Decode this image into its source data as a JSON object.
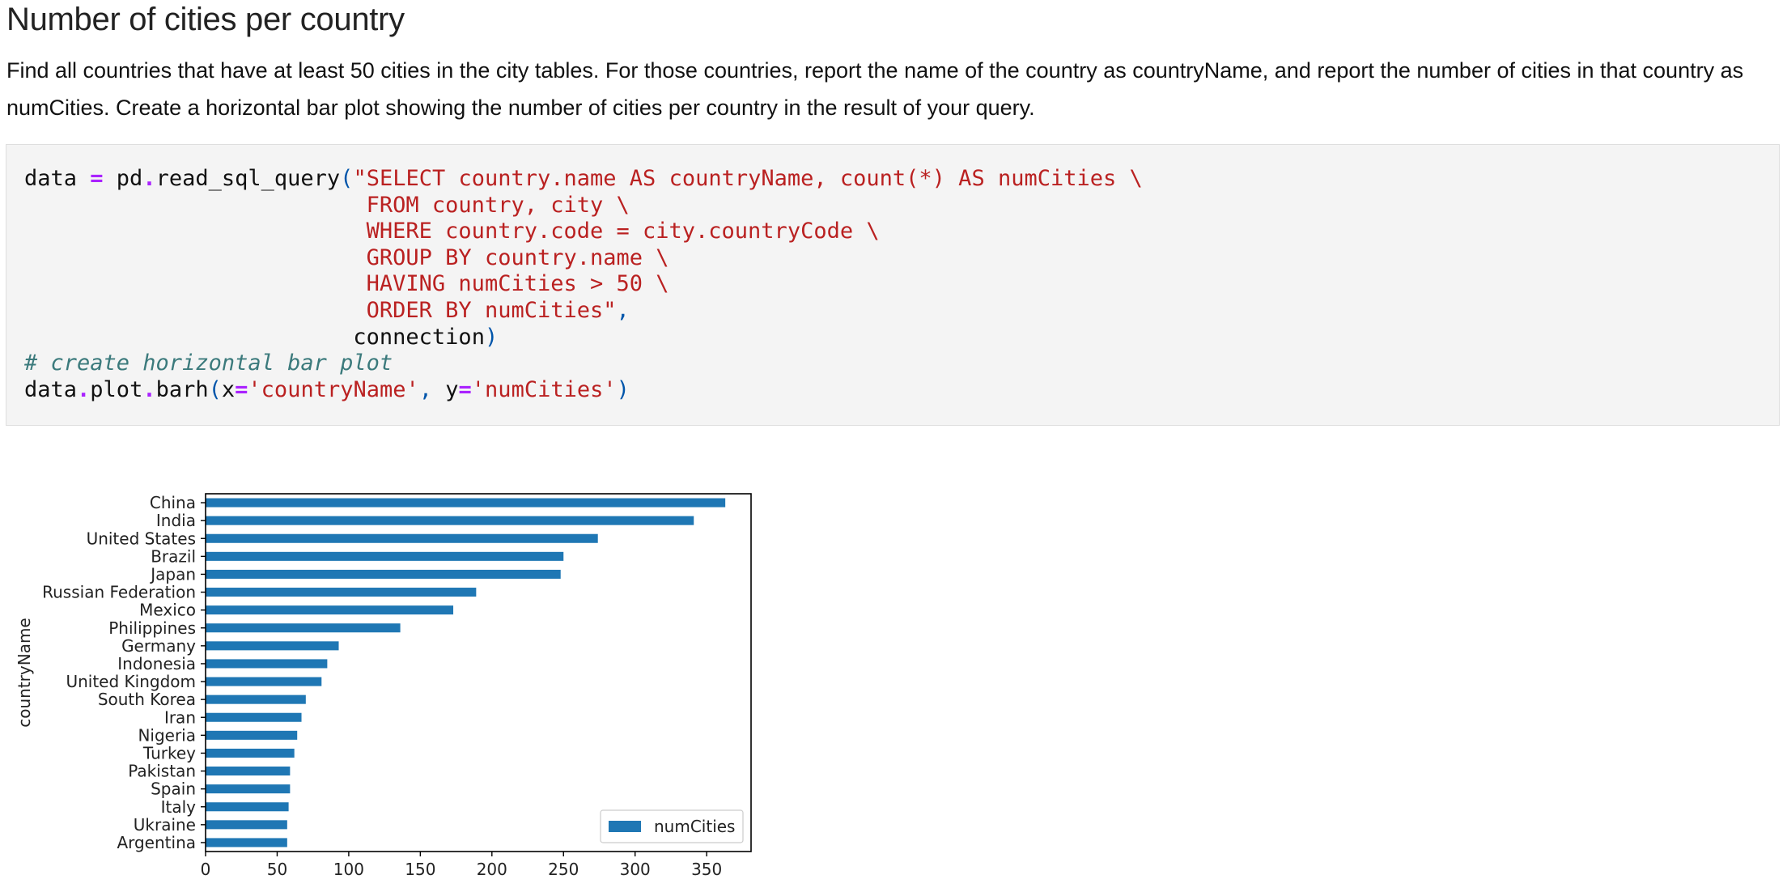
{
  "page": {
    "heading": "Number of cities per country",
    "description": "Find all countries that have at least 50 cities in the city tables. For those countries, report the name of the country as countryName, and report the number of cities in that country as numCities. Create a horizontal bar plot showing the number of cities per country in the result of your query."
  },
  "code": {
    "l1_var": "data ",
    "l1_eq": "=",
    "l1_call_a": " pd",
    "l1_dot": ".",
    "l1_call_b": "read_sql_query",
    "l1_paren": "(",
    "l1_str": "\"SELECT country.name AS countryName, count(*) AS numCities \\",
    "l2_str": "FROM country, city \\",
    "l3_str": "WHERE country.code = city.countryCode \\",
    "l4_str": "GROUP BY country.name \\",
    "l5_str": "HAVING numCities > 50 \\",
    "l6_str": "ORDER BY numCities\"",
    "l6_comma": ",",
    "l7_arg": "connection",
    "l7_paren": ")",
    "l8_comment": "# create horizontal bar plot",
    "l9_a": "data",
    "l9_dot1": ".",
    "l9_b": "plot",
    "l9_dot2": ".",
    "l9_c": "barh",
    "l9_paren1": "(",
    "l9_x": "x",
    "l9_eq1": "=",
    "l9_xval": "'countryName'",
    "l9_comma": ",",
    "l9_y": " y",
    "l9_eq2": "=",
    "l9_yval": "'numCities'",
    "l9_paren2": ")"
  },
  "colors": {
    "bar": "#1f77b4",
    "code_background": "#f4f4f4",
    "string": "#ba2121",
    "operator": "#aa22ff",
    "comment": "#3b7a7c"
  },
  "chart_data": {
    "type": "bar",
    "orientation": "horizontal",
    "categories": [
      "China",
      "India",
      "United States",
      "Brazil",
      "Japan",
      "Russian Federation",
      "Mexico",
      "Philippines",
      "Germany",
      "Indonesia",
      "United Kingdom",
      "South Korea",
      "Iran",
      "Nigeria",
      "Turkey",
      "Pakistan",
      "Spain",
      "Italy",
      "Ukraine",
      "Argentina"
    ],
    "series": [
      {
        "name": "numCities",
        "values": [
          363,
          341,
          274,
          250,
          248,
          189,
          173,
          136,
          93,
          85,
          81,
          70,
          67,
          64,
          62,
          59,
          59,
          58,
          57,
          57
        ]
      }
    ],
    "xticks": [
      "0",
      "50",
      "100",
      "150",
      "200",
      "250",
      "300",
      "350"
    ],
    "xlabel": "",
    "ylabel": "countryName",
    "xlim": [
      0,
      381
    ],
    "legend": {
      "placement": "lower-right",
      "label": "numCities"
    },
    "grid": false
  }
}
